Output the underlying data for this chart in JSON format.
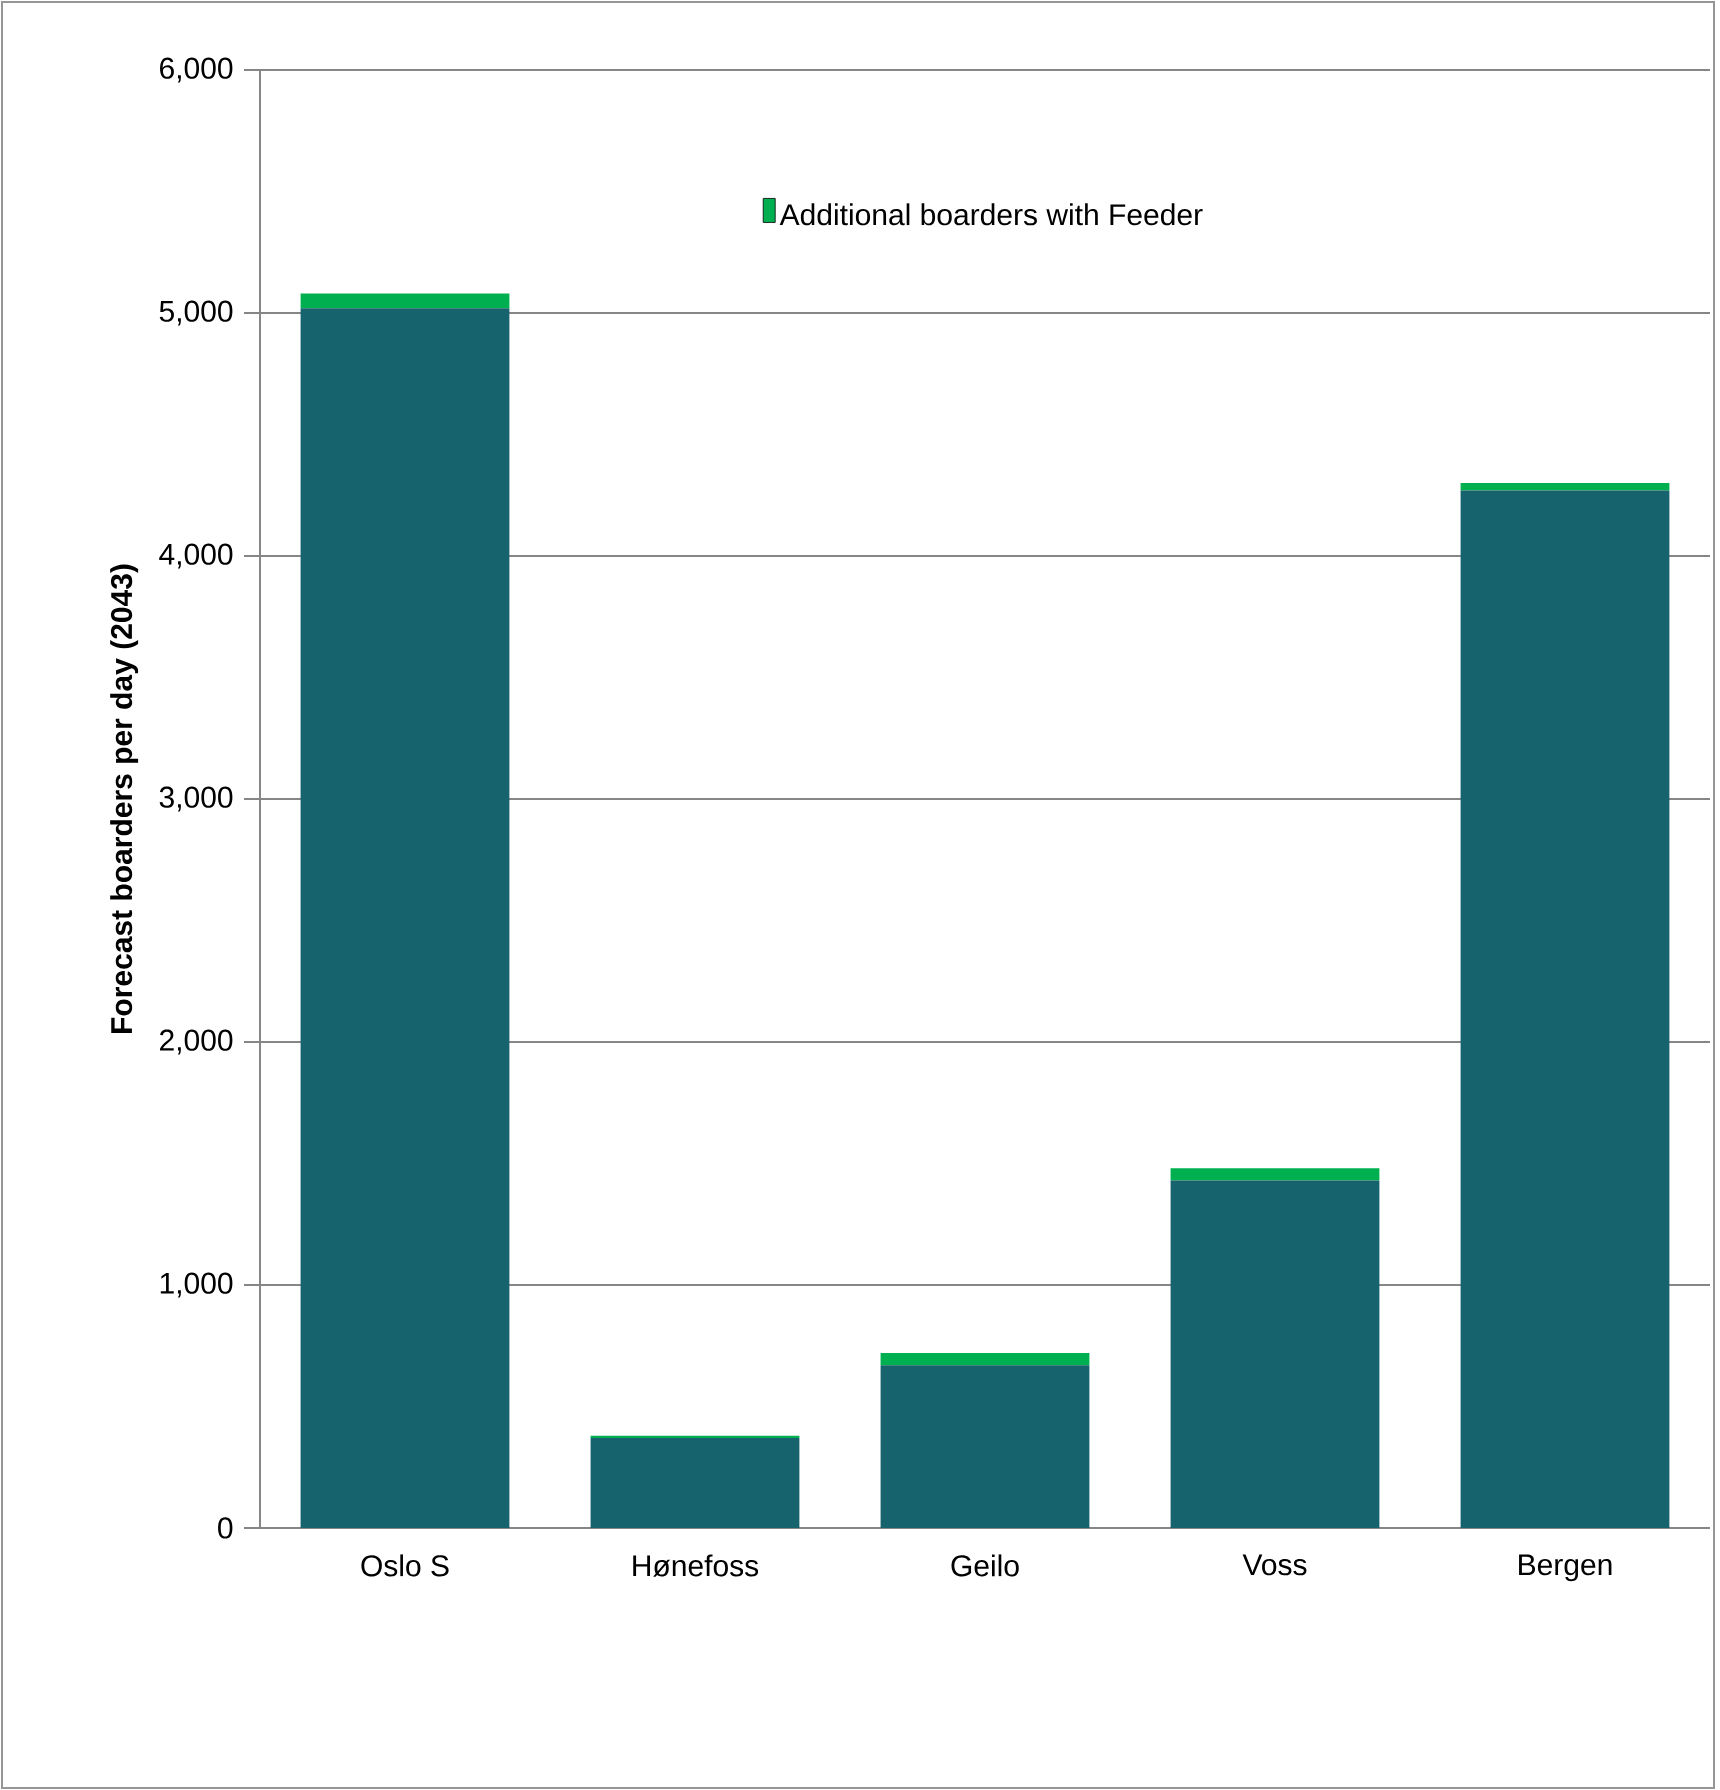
{
  "chart_data": {
    "type": "bar",
    "stacked": true,
    "ylabel": "Forecast boarders per day (2043)",
    "categories": [
      "Oslo S",
      "Hønefoss",
      "Geilo",
      "Voss",
      "Bergen"
    ],
    "series": [
      {
        "color": "#17636d",
        "values": [
          5020,
          370,
          670,
          1430,
          4270
        ]
      },
      {
        "name": "Additional boarders with Feeder",
        "color": "#00b050",
        "values": [
          60,
          10,
          50,
          50,
          30
        ]
      }
    ],
    "ylim": [
      0,
      6000
    ],
    "yticks": [
      0,
      {
        "value": 1000,
        "label": "1,000"
      },
      {
        "value": 2000,
        "label": "2,000"
      },
      {
        "value": 3000,
        "label": "3,000"
      },
      {
        "value": 4000,
        "label": "4,000"
      },
      {
        "value": 5000,
        "label": "5,000"
      },
      {
        "value": 6000,
        "label": "6,000"
      }
    ],
    "grid": "y",
    "legend": "top"
  }
}
